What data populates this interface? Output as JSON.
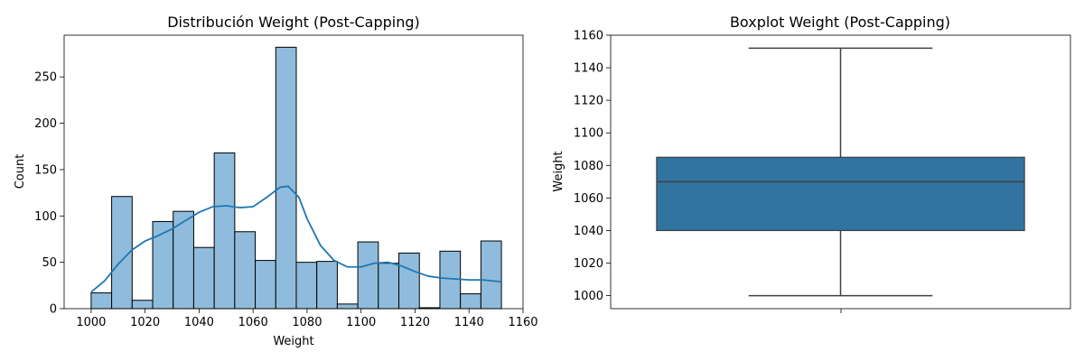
{
  "chart_data": [
    {
      "type": "histogram",
      "title": "Distribución Weight (Post-Capping)",
      "xlabel": "Weight",
      "ylabel": "Count",
      "xlim": [
        990,
        1160
      ],
      "ylim": [
        0,
        295
      ],
      "xticks": [
        1000,
        1020,
        1040,
        1060,
        1080,
        1100,
        1120,
        1140,
        1160
      ],
      "yticks": [
        0,
        50,
        100,
        150,
        200,
        250
      ],
      "bar_color": "#8fbcdc",
      "edge_color": "#000000",
      "kde_color": "#1f77b4",
      "bins": [
        {
          "x0": 1000.0,
          "x1": 1007.6,
          "count": 17
        },
        {
          "x0": 1007.6,
          "x1": 1015.2,
          "count": 121
        },
        {
          "x0": 1015.2,
          "x1": 1022.8,
          "count": 9
        },
        {
          "x0": 1022.8,
          "x1": 1030.4,
          "count": 94
        },
        {
          "x0": 1030.4,
          "x1": 1038.0,
          "count": 105
        },
        {
          "x0": 1038.0,
          "x1": 1045.6,
          "count": 66
        },
        {
          "x0": 1045.6,
          "x1": 1053.2,
          "count": 168
        },
        {
          "x0": 1053.2,
          "x1": 1060.8,
          "count": 83
        },
        {
          "x0": 1060.8,
          "x1": 1068.4,
          "count": 52
        },
        {
          "x0": 1068.4,
          "x1": 1076.0,
          "count": 282
        },
        {
          "x0": 1076.0,
          "x1": 1083.6,
          "count": 50
        },
        {
          "x0": 1083.6,
          "x1": 1091.2,
          "count": 51
        },
        {
          "x0": 1091.2,
          "x1": 1098.8,
          "count": 5
        },
        {
          "x0": 1098.8,
          "x1": 1106.4,
          "count": 72
        },
        {
          "x0": 1106.4,
          "x1": 1114.0,
          "count": 49
        },
        {
          "x0": 1114.0,
          "x1": 1121.6,
          "count": 60
        },
        {
          "x0": 1121.6,
          "x1": 1129.2,
          "count": 1
        },
        {
          "x0": 1129.2,
          "x1": 1136.8,
          "count": 62
        },
        {
          "x0": 1136.8,
          "x1": 1144.4,
          "count": 16
        },
        {
          "x0": 1144.4,
          "x1": 1152.0,
          "count": 73
        }
      ],
      "kde": {
        "x": [
          1000,
          1005,
          1010,
          1015,
          1020,
          1025,
          1030,
          1035,
          1040,
          1045,
          1050,
          1055,
          1060,
          1065,
          1070,
          1073,
          1077,
          1080,
          1085,
          1090,
          1095,
          1100,
          1105,
          1110,
          1115,
          1120,
          1125,
          1130,
          1135,
          1140,
          1145,
          1152
        ],
        "y": [
          18,
          30,
          48,
          63,
          73,
          79,
          86,
          95,
          104,
          110,
          111,
          109,
          110,
          120,
          131,
          132,
          120,
          97,
          68,
          52,
          45,
          45,
          49,
          50,
          46,
          40,
          35,
          33,
          32,
          31,
          31,
          29
        ]
      }
    },
    {
      "type": "boxplot",
      "title": "Boxplot Weight (Post-Capping)",
      "xlabel": "",
      "ylabel": "Weight",
      "ylim": [
        992,
        1160
      ],
      "yticks": [
        1000,
        1020,
        1040,
        1060,
        1080,
        1100,
        1120,
        1140,
        1160
      ],
      "box_color": "#3274a1",
      "line_color": "#3f3f3f",
      "stats": {
        "whislo": 1000,
        "q1": 1040,
        "median": 1070,
        "q3": 1085,
        "whishi": 1152
      }
    }
  ]
}
